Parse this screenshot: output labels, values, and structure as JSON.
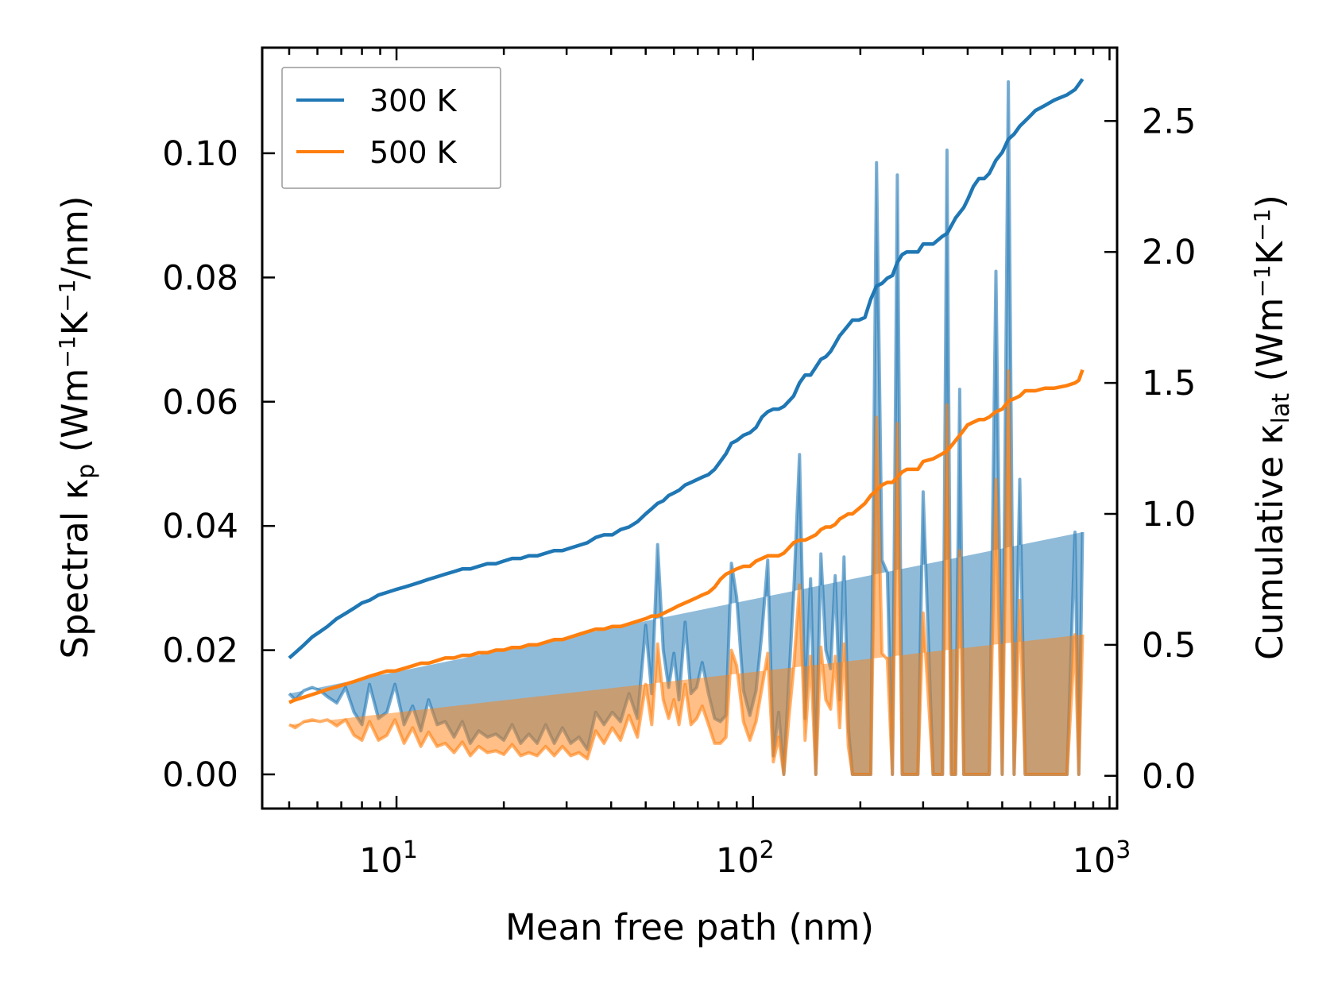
{
  "chart_data": {
    "type": "line+area",
    "x_scale": "log",
    "xlabel": "Mean free path (nm)",
    "ylabel_left": {
      "main": "Spectral κ",
      "sub": "p",
      "unit_pre": " (Wm",
      "sup1": "−1",
      "unit_mid": "K",
      "sup2": "−1",
      "unit_post": "/nm)"
    },
    "ylabel_right": {
      "main": "Cumulative κ",
      "sub": "lat",
      "unit_pre": " (Wm",
      "sup1": "−1",
      "unit_mid": "K",
      "sup2": "−1",
      "unit_post": ")"
    },
    "xlim": [
      4.2,
      1050
    ],
    "ylim_left": [
      -0.0055,
      0.117
    ],
    "ylim_right": [
      -0.125,
      2.78
    ],
    "x_ticks": [
      10,
      100,
      1000
    ],
    "x_tick_labels": [
      {
        "base": "10",
        "exp": "1"
      },
      {
        "base": "10",
        "exp": "2"
      },
      {
        "base": "10",
        "exp": "3"
      }
    ],
    "y_ticks_left": [
      0.0,
      0.02,
      0.04,
      0.06,
      0.08,
      0.1
    ],
    "y_tick_labels_left": [
      "0.00",
      "0.02",
      "0.04",
      "0.06",
      "0.08",
      "0.10"
    ],
    "y_ticks_right": [
      0.0,
      0.5,
      1.0,
      1.5,
      2.0,
      2.5
    ],
    "y_tick_labels_right": [
      "0.0",
      "0.5",
      "1.0",
      "1.5",
      "2.0",
      "2.5"
    ],
    "legend": {
      "position": "upper-left",
      "entries": [
        {
          "label": "300 K",
          "color": "#1f77b4"
        },
        {
          "label": "500 K",
          "color": "#ff7f0e"
        }
      ]
    },
    "spectral_x": [
      5.0,
      5.2,
      5.5,
      5.8,
      6.1,
      6.4,
      6.8,
      7.2,
      7.6,
      8.0,
      8.4,
      8.9,
      9.4,
      9.9,
      10.5,
      11.1,
      11.7,
      12.3,
      13.0,
      13.7,
      14.5,
      15.3,
      16.1,
      17.0,
      18.0,
      19.0,
      20.0,
      21.1,
      22.3,
      23.5,
      24.8,
      26.2,
      27.7,
      29.2,
      30.8,
      32.5,
      34.3,
      36.2,
      38.2,
      40.3,
      42.5,
      44.9,
      47.4,
      50.0,
      52.0,
      54.0,
      56.0,
      58.0,
      60.0,
      62.0,
      64.5,
      67.0,
      69.5,
      72.0,
      75.0,
      78.0,
      81.0,
      84.0,
      87.0,
      90.0,
      94.0,
      98.0,
      102.0,
      106.0,
      110.0,
      114.0,
      118.0,
      122.0,
      126.0,
      130.0,
      135.0,
      140.0,
      145.0,
      150.0,
      155.0,
      160.0,
      165.0,
      170.0,
      175.0,
      180.0,
      185.0,
      190.0,
      198.0,
      206.0,
      214.0,
      222.0,
      230.0,
      238.0,
      246.0,
      254.0,
      262.0,
      270.0,
      280.0,
      290.0,
      300.0,
      320.0,
      340.0,
      350.0,
      360.0,
      370.0,
      380.0,
      390.0,
      400.0,
      415.0,
      430.0,
      445.0,
      460.0,
      480.0,
      500.0,
      520.0,
      540.0,
      560.0,
      580.0,
      600.0,
      620.0,
      660.0,
      700.0,
      760.0,
      800.0,
      820.0,
      840.0,
      870.0,
      900.0,
      930.0,
      950.0
    ],
    "series": [
      {
        "name": "300 K",
        "color": "#1f77b4",
        "spectral": [
          0.013,
          0.012,
          0.0135,
          0.014,
          0.0135,
          0.0125,
          0.0115,
          0.014,
          0.01,
          0.008,
          0.0145,
          0.009,
          0.01,
          0.0145,
          0.008,
          0.011,
          0.007,
          0.012,
          0.008,
          0.0085,
          0.006,
          0.0085,
          0.005,
          0.007,
          0.006,
          0.0065,
          0.0055,
          0.008,
          0.005,
          0.0065,
          0.005,
          0.008,
          0.005,
          0.0075,
          0.005,
          0.006,
          0.004,
          0.01,
          0.008,
          0.01,
          0.0085,
          0.013,
          0.009,
          0.024,
          0.013,
          0.037,
          0.02,
          0.014,
          0.0195,
          0.012,
          0.0245,
          0.013,
          0.014,
          0.018,
          0.013,
          0.009,
          0.0085,
          0.0095,
          0.034,
          0.0285,
          0.0135,
          0.0095,
          0.0135,
          0.023,
          0.0345,
          0.003,
          0.01,
          0.0,
          0.015,
          0.029,
          0.0515,
          0.009,
          0.0315,
          0.0,
          0.0355,
          0.02,
          0.017,
          0.032,
          0.012,
          0.035,
          0.0075,
          0.0,
          0.0,
          0.0,
          0.0,
          0.0985,
          0.0345,
          0.0325,
          0.0,
          0.0965,
          0.0,
          0.0,
          0.0,
          0.0,
          0.0455,
          0.0,
          0.0,
          0.1005,
          0.0,
          0.0,
          0.062,
          0.0,
          0.0,
          0.0,
          0.0,
          0.0,
          0.0,
          0.081,
          0.0,
          0.1115,
          0.0,
          0.0475,
          0.0,
          0.0,
          0.0,
          0.0,
          0.0,
          0.0,
          0.039,
          0.0,
          0.039
        ],
        "cumulative": [
          0.45,
          0.47,
          0.5,
          0.53,
          0.55,
          0.57,
          0.6,
          0.62,
          0.64,
          0.66,
          0.67,
          0.69,
          0.7,
          0.71,
          0.72,
          0.73,
          0.74,
          0.75,
          0.76,
          0.77,
          0.78,
          0.79,
          0.79,
          0.8,
          0.81,
          0.81,
          0.82,
          0.83,
          0.83,
          0.84,
          0.84,
          0.85,
          0.86,
          0.86,
          0.87,
          0.88,
          0.89,
          0.91,
          0.92,
          0.92,
          0.94,
          0.95,
          0.97,
          1.0,
          1.02,
          1.04,
          1.05,
          1.07,
          1.08,
          1.09,
          1.11,
          1.12,
          1.13,
          1.14,
          1.15,
          1.17,
          1.2,
          1.23,
          1.27,
          1.28,
          1.3,
          1.31,
          1.33,
          1.37,
          1.39,
          1.4,
          1.4,
          1.41,
          1.43,
          1.45,
          1.5,
          1.53,
          1.53,
          1.56,
          1.59,
          1.6,
          1.62,
          1.65,
          1.68,
          1.7,
          1.72,
          1.74,
          1.74,
          1.75,
          1.82,
          1.87,
          1.88,
          1.9,
          1.91,
          1.96,
          1.99,
          2.0,
          2.0,
          2.0,
          2.03,
          2.03,
          2.06,
          2.07,
          2.1,
          2.13,
          2.15,
          2.17,
          2.2,
          2.25,
          2.28,
          2.28,
          2.3,
          2.35,
          2.38,
          2.43,
          2.45,
          2.48,
          2.5,
          2.52,
          2.54,
          2.56,
          2.58,
          2.6,
          2.62,
          2.64,
          2.66
        ]
      },
      {
        "name": "500 K",
        "color": "#ff7f0e",
        "spectral": [
          0.008,
          0.0075,
          0.0085,
          0.0088,
          0.0085,
          0.0088,
          0.0078,
          0.0088,
          0.0063,
          0.0055,
          0.0085,
          0.0055,
          0.0063,
          0.0088,
          0.005,
          0.0075,
          0.0045,
          0.0068,
          0.0045,
          0.005,
          0.0035,
          0.0052,
          0.003,
          0.0045,
          0.0035,
          0.0038,
          0.0032,
          0.0048,
          0.003,
          0.0035,
          0.003,
          0.0045,
          0.003,
          0.0045,
          0.003,
          0.0035,
          0.0025,
          0.007,
          0.005,
          0.0075,
          0.0055,
          0.0095,
          0.006,
          0.0145,
          0.008,
          0.021,
          0.012,
          0.009,
          0.012,
          0.008,
          0.0145,
          0.008,
          0.009,
          0.011,
          0.008,
          0.005,
          0.005,
          0.006,
          0.02,
          0.0175,
          0.0085,
          0.0055,
          0.0085,
          0.014,
          0.0195,
          0.002,
          0.006,
          0.0,
          0.009,
          0.017,
          0.0305,
          0.0055,
          0.019,
          0.0,
          0.0205,
          0.012,
          0.0105,
          0.019,
          0.0075,
          0.021,
          0.0045,
          0.0,
          0.0,
          0.0,
          0.0,
          0.0575,
          0.0195,
          0.0185,
          0.0,
          0.0565,
          0.0,
          0.0,
          0.0,
          0.0,
          0.026,
          0.0,
          0.0,
          0.0595,
          0.0,
          0.0,
          0.036,
          0.0,
          0.0,
          0.0,
          0.0,
          0.0,
          0.0,
          0.0475,
          0.0,
          0.065,
          0.0,
          0.028,
          0.0,
          0.0,
          0.0,
          0.0,
          0.0,
          0.0,
          0.0225,
          0.0,
          0.0225
        ],
        "cumulative": [
          0.28,
          0.29,
          0.3,
          0.31,
          0.32,
          0.33,
          0.34,
          0.35,
          0.36,
          0.37,
          0.38,
          0.39,
          0.4,
          0.4,
          0.41,
          0.42,
          0.43,
          0.43,
          0.44,
          0.45,
          0.45,
          0.46,
          0.46,
          0.47,
          0.47,
          0.48,
          0.48,
          0.49,
          0.49,
          0.5,
          0.5,
          0.51,
          0.52,
          0.52,
          0.53,
          0.54,
          0.55,
          0.56,
          0.56,
          0.57,
          0.57,
          0.58,
          0.59,
          0.6,
          0.61,
          0.61,
          0.62,
          0.63,
          0.64,
          0.65,
          0.66,
          0.67,
          0.68,
          0.69,
          0.7,
          0.72,
          0.75,
          0.77,
          0.78,
          0.79,
          0.8,
          0.8,
          0.82,
          0.83,
          0.84,
          0.84,
          0.84,
          0.85,
          0.87,
          0.89,
          0.9,
          0.9,
          0.91,
          0.92,
          0.94,
          0.95,
          0.95,
          0.96,
          0.98,
          0.99,
          1.0,
          1.0,
          1.02,
          1.04,
          1.07,
          1.09,
          1.11,
          1.12,
          1.12,
          1.14,
          1.16,
          1.17,
          1.17,
          1.17,
          1.2,
          1.21,
          1.23,
          1.24,
          1.26,
          1.28,
          1.3,
          1.32,
          1.34,
          1.35,
          1.36,
          1.36,
          1.37,
          1.39,
          1.4,
          1.43,
          1.44,
          1.45,
          1.47,
          1.47,
          1.47,
          1.48,
          1.48,
          1.49,
          1.5,
          1.51,
          1.55
        ]
      }
    ]
  }
}
